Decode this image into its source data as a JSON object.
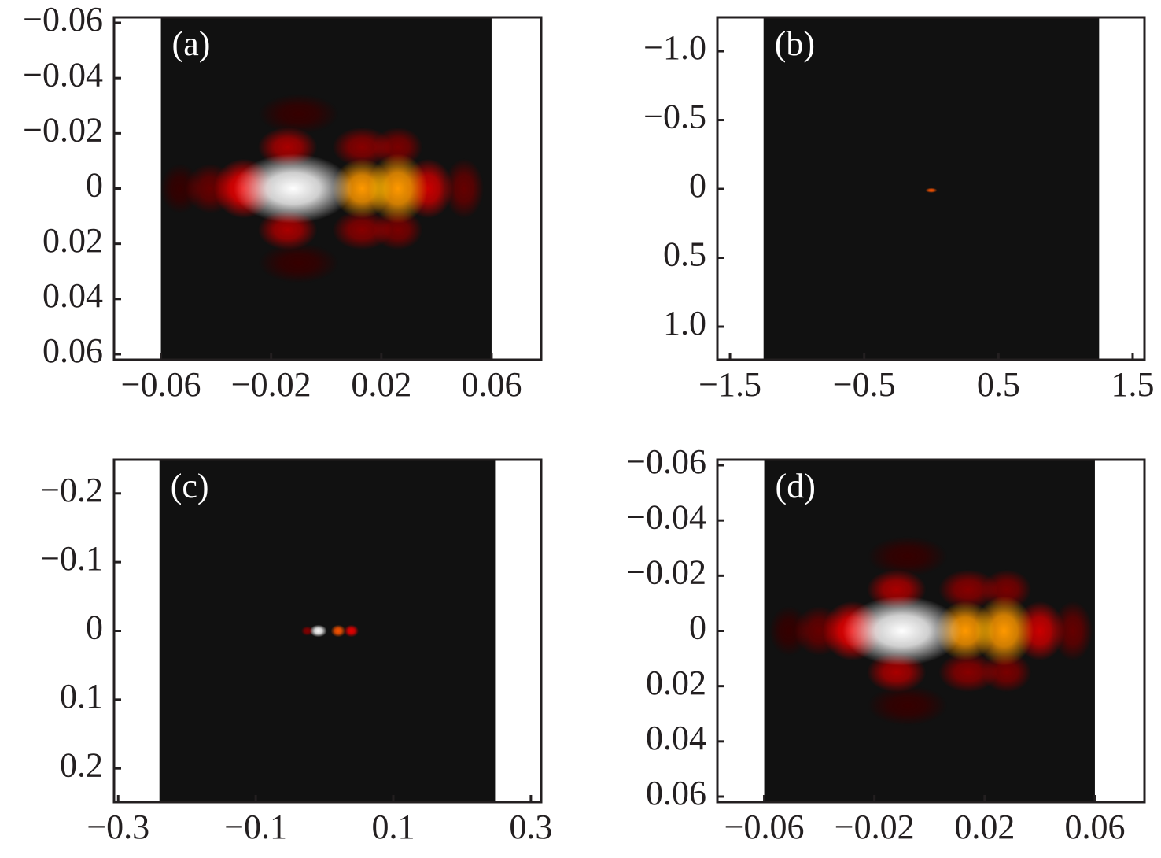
{
  "chart_data": [
    {
      "type": "heatmap",
      "panel_label": "(a)",
      "colormap": "hot",
      "background_color": "#111111",
      "xlim": [
        -0.077,
        0.078
      ],
      "ylim": [
        -0.062,
        0.062
      ],
      "y_inverted": true,
      "xextent": [
        -0.06,
        0.06
      ],
      "yextent": [
        -0.062,
        0.062
      ],
      "xticks": [
        {
          "value": -0.06,
          "label": "−0.06"
        },
        {
          "value": -0.02,
          "label": "−0.02"
        },
        0.02,
        0.06
      ],
      "yticks": [
        {
          "value": -0.06,
          "label": "−0.06"
        },
        {
          "value": -0.04,
          "label": "−0.04"
        },
        {
          "value": -0.02,
          "label": "−0.02"
        },
        0,
        0.02,
        0.04,
        0.06
      ],
      "spots": [
        {
          "x": -0.012,
          "y": 0,
          "sx": 0.012,
          "sy": 0.007,
          "intensity": 1.0
        },
        {
          "x": 0.013,
          "y": 0,
          "sx": 0.006,
          "sy": 0.006,
          "intensity": 0.6
        },
        {
          "x": 0.026,
          "y": 0,
          "sx": 0.006,
          "sy": 0.007,
          "intensity": 0.6
        },
        {
          "x": 0.037,
          "y": 0,
          "sx": 0.005,
          "sy": 0.006,
          "intensity": 0.3
        },
        {
          "x": 0.05,
          "y": 0,
          "sx": 0.004,
          "sy": 0.006,
          "intensity": 0.15
        },
        {
          "x": -0.03,
          "y": 0,
          "sx": 0.006,
          "sy": 0.006,
          "intensity": 0.35
        },
        {
          "x": -0.042,
          "y": 0,
          "sx": 0.005,
          "sy": 0.005,
          "intensity": 0.15
        },
        {
          "x": -0.053,
          "y": 0,
          "sx": 0.004,
          "sy": 0.005,
          "intensity": 0.08
        },
        {
          "x": -0.014,
          "y": -0.015,
          "sx": 0.006,
          "sy": 0.004,
          "intensity": 0.25
        },
        {
          "x": -0.014,
          "y": 0.015,
          "sx": 0.006,
          "sy": 0.004,
          "intensity": 0.25
        },
        {
          "x": 0.013,
          "y": -0.015,
          "sx": 0.006,
          "sy": 0.004,
          "intensity": 0.2
        },
        {
          "x": 0.013,
          "y": 0.015,
          "sx": 0.006,
          "sy": 0.004,
          "intensity": 0.2
        },
        {
          "x": 0.026,
          "y": -0.015,
          "sx": 0.005,
          "sy": 0.004,
          "intensity": 0.18
        },
        {
          "x": 0.026,
          "y": 0.015,
          "sx": 0.005,
          "sy": 0.004,
          "intensity": 0.18
        },
        {
          "x": -0.01,
          "y": -0.027,
          "sx": 0.008,
          "sy": 0.004,
          "intensity": 0.08
        },
        {
          "x": -0.01,
          "y": 0.027,
          "sx": 0.008,
          "sy": 0.004,
          "intensity": 0.08
        }
      ]
    },
    {
      "type": "heatmap",
      "panel_label": "(b)",
      "colormap": "hot",
      "background_color": "#111111",
      "xlim": [
        -1.594,
        1.588
      ],
      "ylim": [
        -1.246,
        1.24
      ],
      "y_inverted": true,
      "xextent": [
        -1.25,
        1.25
      ],
      "yextent": [
        -1.246,
        1.24
      ],
      "xticks": [
        {
          "value": -1.5,
          "label": "−1.5"
        },
        {
          "value": -0.5,
          "label": "−0.5"
        },
        0.5,
        1.5
      ],
      "yticks": [
        {
          "value": -1,
          "label": "−1.0"
        },
        {
          "value": -0.5,
          "label": "−0.5"
        },
        0,
        0.5,
        {
          "value": 1,
          "label": "1.0"
        }
      ],
      "spots": [
        {
          "x": 0,
          "y": 0.01,
          "sx": 0.025,
          "sy": 0.01,
          "intensity": 0.5
        }
      ]
    },
    {
      "type": "heatmap",
      "panel_label": "(c)",
      "colormap": "hot",
      "background_color": "#111111",
      "xlim": [
        -0.306,
        0.315
      ],
      "ylim": [
        -0.249,
        0.249
      ],
      "y_inverted": true,
      "xextent": [
        -0.24,
        0.248
      ],
      "yextent": [
        -0.249,
        0.249
      ],
      "xticks": [
        {
          "value": -0.3,
          "label": "−0.3"
        },
        {
          "value": -0.1,
          "label": "−0.1"
        },
        0.1,
        0.3
      ],
      "yticks": [
        {
          "value": -0.2,
          "label": "−0.2"
        },
        {
          "value": -0.1,
          "label": "−0.1"
        },
        0,
        0.1,
        0.2
      ],
      "spots": [
        {
          "x": -0.009,
          "y": 0,
          "sx": 0.007,
          "sy": 0.005,
          "intensity": 1.0
        },
        {
          "x": 0.02,
          "y": 0,
          "sx": 0.006,
          "sy": 0.005,
          "intensity": 0.5
        },
        {
          "x": 0.039,
          "y": 0,
          "sx": 0.006,
          "sy": 0.005,
          "intensity": 0.35
        },
        {
          "x": -0.025,
          "y": 0,
          "sx": 0.005,
          "sy": 0.004,
          "intensity": 0.2
        }
      ]
    },
    {
      "type": "heatmap",
      "panel_label": "(d)",
      "colormap": "hot",
      "background_color": "#111111",
      "xlim": [
        -0.077,
        0.078
      ],
      "ylim": [
        -0.062,
        0.062
      ],
      "y_inverted": true,
      "xextent": [
        -0.06,
        0.06
      ],
      "yextent": [
        -0.062,
        0.062
      ],
      "xticks": [
        {
          "value": -0.06,
          "label": "−0.06"
        },
        {
          "value": -0.02,
          "label": "−0.02"
        },
        0.02,
        0.06
      ],
      "yticks": [
        {
          "value": -0.06,
          "label": "−0.06"
        },
        {
          "value": -0.04,
          "label": "−0.04"
        },
        {
          "value": -0.02,
          "label": "−0.02"
        },
        0,
        0.02,
        0.04,
        0.06
      ],
      "spots": [
        {
          "x": -0.01,
          "y": 0,
          "sx": 0.012,
          "sy": 0.007,
          "intensity": 1.0
        },
        {
          "x": 0.013,
          "y": 0,
          "sx": 0.006,
          "sy": 0.006,
          "intensity": 0.6
        },
        {
          "x": 0.027,
          "y": 0,
          "sx": 0.006,
          "sy": 0.007,
          "intensity": 0.6
        },
        {
          "x": 0.04,
          "y": 0,
          "sx": 0.005,
          "sy": 0.006,
          "intensity": 0.3
        },
        {
          "x": 0.052,
          "y": 0,
          "sx": 0.004,
          "sy": 0.006,
          "intensity": 0.15
        },
        {
          "x": -0.028,
          "y": 0,
          "sx": 0.006,
          "sy": 0.006,
          "intensity": 0.35
        },
        {
          "x": -0.04,
          "y": 0,
          "sx": 0.005,
          "sy": 0.005,
          "intensity": 0.15
        },
        {
          "x": -0.051,
          "y": 0,
          "sx": 0.004,
          "sy": 0.005,
          "intensity": 0.08
        },
        {
          "x": -0.012,
          "y": -0.015,
          "sx": 0.006,
          "sy": 0.004,
          "intensity": 0.25
        },
        {
          "x": -0.012,
          "y": 0.015,
          "sx": 0.006,
          "sy": 0.004,
          "intensity": 0.25
        },
        {
          "x": 0.014,
          "y": -0.015,
          "sx": 0.006,
          "sy": 0.004,
          "intensity": 0.2
        },
        {
          "x": 0.014,
          "y": 0.015,
          "sx": 0.006,
          "sy": 0.004,
          "intensity": 0.2
        },
        {
          "x": 0.028,
          "y": -0.015,
          "sx": 0.005,
          "sy": 0.004,
          "intensity": 0.18
        },
        {
          "x": 0.028,
          "y": 0.015,
          "sx": 0.005,
          "sy": 0.004,
          "intensity": 0.18
        },
        {
          "x": -0.008,
          "y": -0.027,
          "sx": 0.008,
          "sy": 0.004,
          "intensity": 0.08
        },
        {
          "x": -0.008,
          "y": 0.027,
          "sx": 0.008,
          "sy": 0.004,
          "intensity": 0.08
        }
      ]
    }
  ]
}
